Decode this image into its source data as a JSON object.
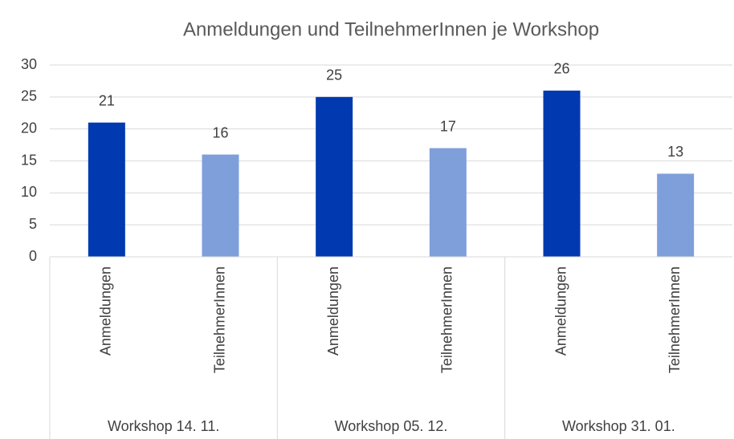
{
  "chart_data": {
    "type": "bar",
    "title": "Anmeldungen und TeilnehmerInnen je Workshop",
    "categories": [
      "Workshop 14. 11.",
      "Workshop 05. 12.",
      "Workshop 31. 01."
    ],
    "series": [
      {
        "name": "Anmeldungen",
        "color": "#0039b0",
        "values": [
          21,
          25,
          26
        ]
      },
      {
        "name": "TeilnehmerInnen",
        "color": "#7f9fdb",
        "values": [
          16,
          17,
          13
        ]
      }
    ],
    "ylim": [
      0,
      30
    ],
    "yticks": [
      0,
      5,
      10,
      15,
      20,
      25,
      30
    ],
    "grid": true,
    "data_labels": true
  }
}
